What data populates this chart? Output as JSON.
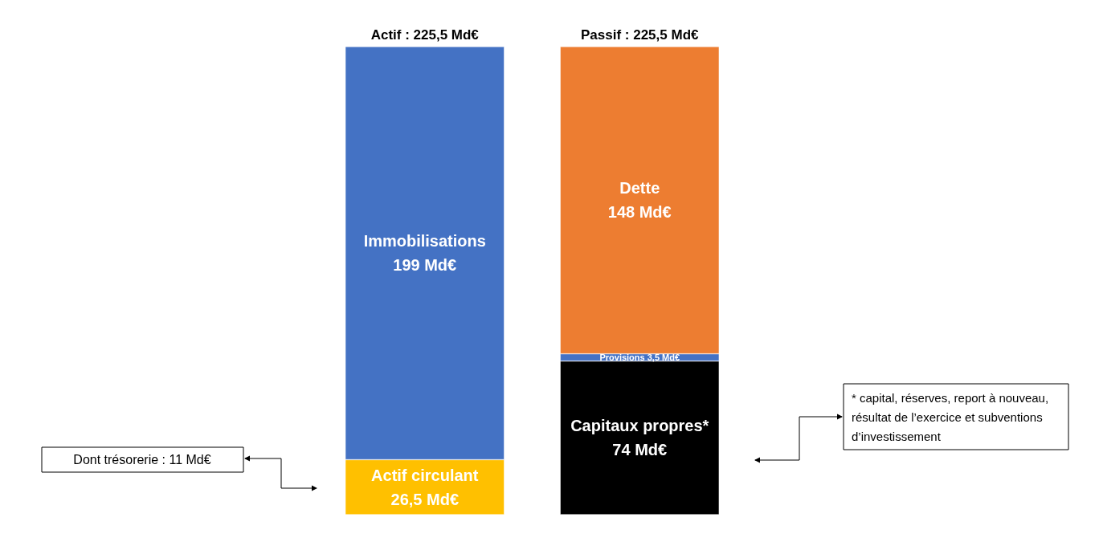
{
  "chart_data": {
    "type": "bar",
    "stacked": true,
    "categories": [
      "Actif : 225,5 Md€",
      "Passif : 225,5 Md€"
    ],
    "series": [
      {
        "color": "#ffc000",
        "values": [
          26.5,
          null
        ],
        "value_labels": [
          "Actif circulant\n26,5 Md€",
          null
        ]
      },
      {
        "color": "#4472c4",
        "values": [
          199,
          null
        ],
        "value_labels": [
          "Immobilisations\n199 Md€",
          null
        ]
      },
      {
        "color": "#000000",
        "values": [
          null,
          74
        ],
        "value_labels": [
          null,
          "Capitaux propres*\n74 Md€"
        ]
      },
      {
        "color": "#4472c4",
        "values": [
          null,
          3.5
        ],
        "value_labels": [
          null,
          "Provisions 3,5 Md€"
        ]
      },
      {
        "color": "#ed7d31",
        "values": [
          null,
          148
        ],
        "value_labels": [
          null,
          "Dette\n148 Md€"
        ]
      }
    ],
    "annotations": [
      "Dont trésorerie : 11 Md€",
      "* capital, réserves, report à nouveau, résultat de l’exercice et subventions d’investissement"
    ],
    "grid": false
  }
}
